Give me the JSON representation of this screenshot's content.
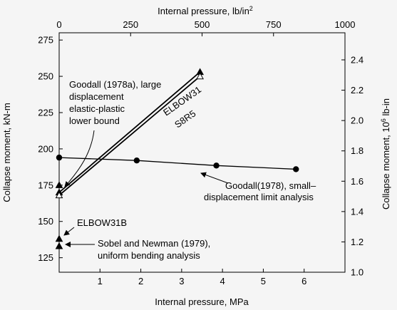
{
  "chart_data": {
    "type": "line",
    "xlabel": "Internal pressure, MPa",
    "xlabel_top_prefix": "Internal pressure, lb/in",
    "xlabel_top_sup": "2",
    "ylabel": "Collapse moment, kN-m",
    "ylabel_right_prefix": "Collapse moment, 10",
    "ylabel_right_sup": "6",
    "ylabel_right_suffix": " lb-in",
    "xlim": [
      0,
      7
    ],
    "ylim": [
      115,
      280
    ],
    "x_ticks": [
      1,
      2,
      3,
      4,
      5,
      6
    ],
    "x_ticks_top": [
      "0",
      "250",
      "500",
      "750",
      "1000"
    ],
    "y_ticks": [
      125,
      150,
      175,
      200,
      225,
      250,
      275
    ],
    "y_ticks_right": [
      "1.0",
      "1.2",
      "1.4",
      "1.6",
      "1.8",
      "2.0",
      "2.2",
      "2.4"
    ],
    "series": [
      {
        "name": "ELBOW31",
        "marker": "triangle-filled",
        "x": [
          0,
          3.45
        ],
        "y": [
          170,
          253
        ]
      },
      {
        "name": "S8R5",
        "marker": "triangle-open",
        "x": [
          0,
          3.45
        ],
        "y": [
          168,
          250
        ]
      },
      {
        "name": "Goodall(1978), small-displacement limit analysis",
        "marker": "circle-filled",
        "x": [
          0,
          1.9,
          3.85,
          5.8
        ],
        "y": [
          194,
          192,
          188.5,
          186
        ]
      }
    ],
    "points": [
      {
        "name": "Goodall (1978a) lower bound",
        "marker": "triangle-filled",
        "x": 0,
        "y": 175
      },
      {
        "name": "ELBOW31B",
        "marker": "triangle-filled",
        "x": 0,
        "y": 138
      },
      {
        "name": "Sobel and Newman (1979)",
        "marker": "triangle-filled",
        "x": 0,
        "y": 133
      }
    ],
    "annotations": {
      "goodall_large": [
        "Goodall (1978a), large",
        "displacement",
        "elastic-plastic",
        "lower bound"
      ],
      "elbow31_label": "ELBOW31",
      "s8r5_label": "S8R5",
      "goodall_small": [
        "Goodall(1978), small–",
        "displacement limit analysis"
      ],
      "elbow31b": "ELBOW31B",
      "sobel": [
        "Sobel and Newman (1979),",
        "uniform bending analysis"
      ]
    },
    "grid": false
  }
}
